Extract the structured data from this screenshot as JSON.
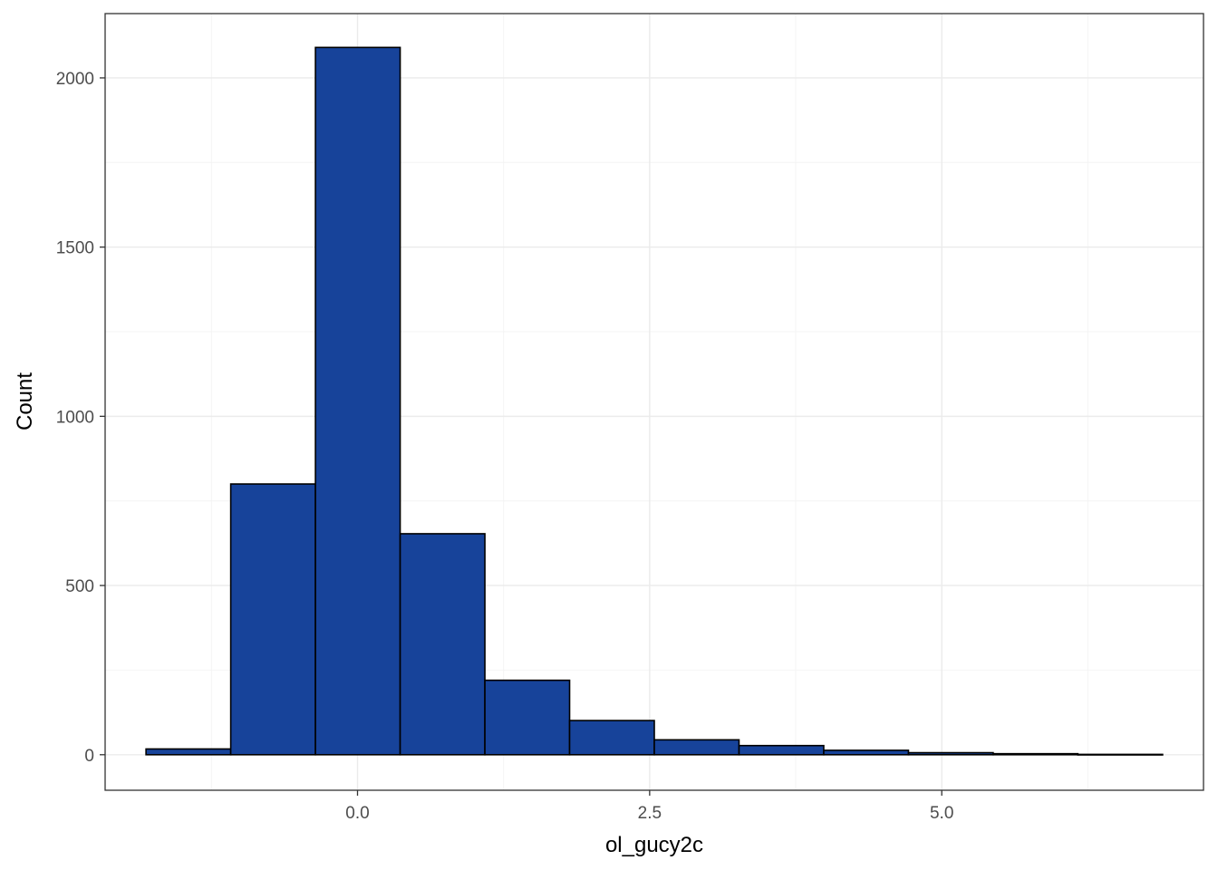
{
  "chart_data": {
    "type": "bar",
    "title": "",
    "xlabel": "ol_gucy2c",
    "ylabel": "Count",
    "bin_edges": [
      -1.81,
      -1.085,
      -0.36,
      0.365,
      1.09,
      1.815,
      2.54,
      3.265,
      3.99,
      4.715,
      5.44,
      6.165,
      6.89
    ],
    "values": [
      17,
      800,
      2090,
      653,
      220,
      101,
      44,
      27,
      13,
      6,
      3,
      1
    ],
    "xlim": [
      -2.16,
      7.24
    ],
    "ylim": [
      -105,
      2190
    ],
    "x_ticks": [
      0.0,
      2.5,
      5.0
    ],
    "x_tick_labels": [
      "0.0",
      "2.5",
      "5.0"
    ],
    "y_ticks": [
      0,
      500,
      1000,
      1500,
      2000
    ],
    "y_tick_labels": [
      "0",
      "500",
      "1000",
      "1500",
      "2000"
    ],
    "grid": true,
    "legend": "none",
    "colors": {
      "bar_fill": "#17439A",
      "bar_stroke": "#000000",
      "grid_major": "#EBEBEB",
      "grid_minor": "#F4F4F4",
      "panel_border": "#333333",
      "tick_text": "#4D4D4D"
    }
  }
}
